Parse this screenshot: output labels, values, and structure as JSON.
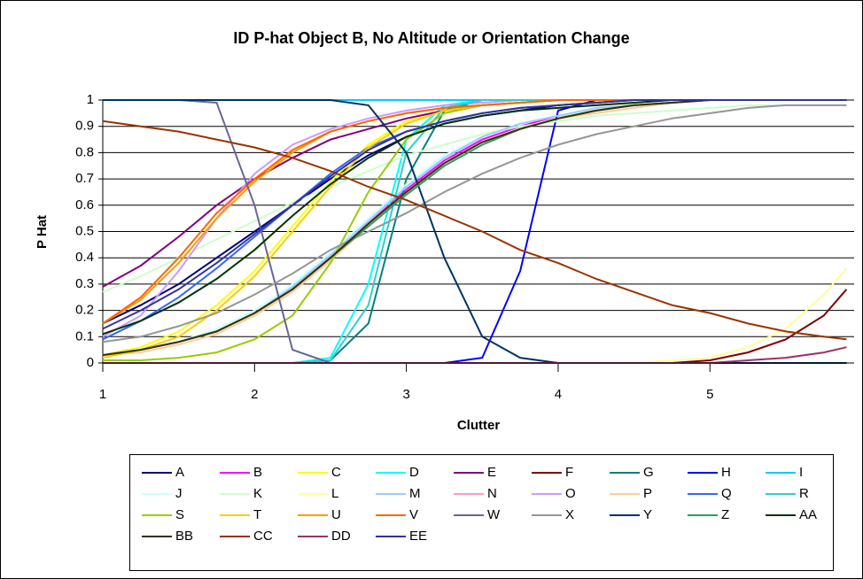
{
  "chart_data": {
    "type": "line",
    "title": "ID P-hat Object B, No Altitude or Orientation Change",
    "xlabel": "Clutter",
    "ylabel": "P Hat",
    "x": [
      1,
      1.25,
      1.5,
      1.75,
      2,
      2.25,
      2.5,
      2.75,
      3,
      3.25,
      3.5,
      3.75,
      4,
      4.25,
      4.5,
      4.75,
      5,
      5.25,
      5.5,
      5.75,
      5.9
    ],
    "xlim": [
      1,
      5.95
    ],
    "xticks": [
      1,
      2,
      3,
      4,
      5
    ],
    "ylim": [
      0,
      1
    ],
    "yticks": [
      0,
      0.1,
      0.2,
      0.3,
      0.4,
      0.5,
      0.6,
      0.7,
      0.8,
      0.9,
      1
    ],
    "grid": true,
    "legend": "bottom",
    "series": [
      {
        "name": "A",
        "color": "#000080",
        "values": [
          0.15,
          0.22,
          0.3,
          0.4,
          0.5,
          0.6,
          0.7,
          0.79,
          0.86,
          0.91,
          0.94,
          0.96,
          0.98,
          0.99,
          1,
          1,
          1,
          1,
          1,
          1,
          1
        ]
      },
      {
        "name": "B",
        "color": "#FF00FF",
        "values": [
          0.03,
          0.05,
          0.08,
          0.12,
          0.19,
          0.28,
          0.4,
          0.53,
          0.66,
          0.77,
          0.85,
          0.9,
          0.94,
          0.96,
          0.98,
          0.99,
          1,
          1,
          1,
          1,
          1
        ]
      },
      {
        "name": "C",
        "color": "#FFFF00",
        "values": [
          0.03,
          0.06,
          0.12,
          0.22,
          0.35,
          0.52,
          0.69,
          0.83,
          0.92,
          0.96,
          0.98,
          0.99,
          1,
          1,
          1,
          1,
          1,
          1,
          1,
          1,
          1
        ]
      },
      {
        "name": "D",
        "color": "#00FFFF",
        "values": [
          0,
          0,
          0,
          0,
          0,
          0,
          0.02,
          0.3,
          0.85,
          0.98,
          1,
          1,
          1,
          1,
          1,
          1,
          1,
          1,
          1,
          1,
          1
        ]
      },
      {
        "name": "E",
        "color": "#800080",
        "values": [
          0.29,
          0.37,
          0.48,
          0.6,
          0.7,
          0.78,
          0.85,
          0.89,
          0.93,
          0.96,
          0.98,
          0.99,
          1,
          1,
          1,
          1,
          1,
          1,
          1,
          1,
          1
        ]
      },
      {
        "name": "F",
        "color": "#800000",
        "values": [
          0,
          0,
          0,
          0,
          0,
          0,
          0,
          0,
          0,
          0,
          0,
          0,
          0,
          0,
          0,
          0,
          0.01,
          0.04,
          0.09,
          0.18,
          0.28
        ]
      },
      {
        "name": "G",
        "color": "#008080",
        "values": [
          0,
          0,
          0,
          0,
          0,
          0,
          0.01,
          0.15,
          0.7,
          0.96,
          1,
          1,
          1,
          1,
          1,
          1,
          1,
          1,
          1,
          1,
          1
        ]
      },
      {
        "name": "H",
        "color": "#0000FF",
        "values": [
          0,
          0,
          0,
          0,
          0,
          0,
          0,
          0,
          0,
          0,
          0.02,
          0.35,
          0.96,
          1,
          1,
          1,
          1,
          1,
          1,
          1,
          1
        ]
      },
      {
        "name": "I",
        "color": "#00CCFF",
        "values": [
          1,
          1,
          1,
          1,
          1,
          1,
          1,
          1,
          1,
          1,
          1,
          1,
          1,
          1,
          1,
          1,
          1,
          1,
          1,
          1,
          1
        ]
      },
      {
        "name": "J",
        "color": "#CCFFFF",
        "values": [
          0.03,
          0.05,
          0.08,
          0.13,
          0.2,
          0.3,
          0.42,
          0.55,
          0.68,
          0.79,
          0.86,
          0.91,
          0.94,
          0.96,
          0.98,
          0.99,
          1,
          1,
          1,
          1,
          1
        ]
      },
      {
        "name": "K",
        "color": "#CCFFCC",
        "values": [
          0.27,
          0.33,
          0.4,
          0.47,
          0.54,
          0.61,
          0.67,
          0.73,
          0.79,
          0.83,
          0.87,
          0.9,
          0.92,
          0.94,
          0.95,
          0.96,
          0.97,
          0.98,
          0.98,
          0.98,
          0.98
        ]
      },
      {
        "name": "L",
        "color": "#FFFF99",
        "values": [
          0,
          0,
          0,
          0,
          0,
          0,
          0,
          0,
          0,
          0,
          0,
          0,
          0,
          0,
          0,
          0.01,
          0.02,
          0.06,
          0.13,
          0.26,
          0.36
        ]
      },
      {
        "name": "M",
        "color": "#99CCFF",
        "values": [
          0.03,
          0.05,
          0.08,
          0.12,
          0.19,
          0.29,
          0.41,
          0.54,
          0.67,
          0.78,
          0.86,
          0.91,
          0.94,
          0.97,
          0.98,
          0.99,
          1,
          1,
          1,
          1,
          1
        ]
      },
      {
        "name": "N",
        "color": "#FF99CC",
        "values": [
          0.03,
          0.05,
          0.08,
          0.12,
          0.19,
          0.28,
          0.4,
          0.53,
          0.65,
          0.76,
          0.84,
          0.89,
          0.93,
          0.96,
          0.98,
          0.99,
          1,
          1,
          1,
          1,
          1
        ]
      },
      {
        "name": "O",
        "color": "#CC99FF",
        "values": [
          0.1,
          0.18,
          0.35,
          0.55,
          0.72,
          0.83,
          0.89,
          0.93,
          0.96,
          0.98,
          0.99,
          1,
          1,
          1,
          1,
          1,
          1,
          1,
          1,
          1,
          1
        ]
      },
      {
        "name": "P",
        "color": "#FFCC99",
        "values": [
          0.03,
          0.04,
          0.07,
          0.11,
          0.18,
          0.27,
          0.39,
          0.52,
          0.64,
          0.75,
          0.83,
          0.89,
          0.93,
          0.95,
          0.97,
          0.99,
          1,
          1,
          1,
          1,
          1
        ]
      },
      {
        "name": "Q",
        "color": "#3366FF",
        "values": [
          0.09,
          0.16,
          0.25,
          0.36,
          0.48,
          0.6,
          0.72,
          0.82,
          0.88,
          0.92,
          0.95,
          0.97,
          0.98,
          0.99,
          1,
          1,
          1,
          1,
          1,
          1,
          1
        ]
      },
      {
        "name": "R",
        "color": "#33CCCC",
        "values": [
          0,
          0,
          0,
          0,
          0,
          0,
          0.01,
          0.22,
          0.8,
          0.97,
          1,
          1,
          1,
          1,
          1,
          1,
          1,
          1,
          1,
          1,
          1
        ]
      },
      {
        "name": "S",
        "color": "#99CC00",
        "values": [
          0.01,
          0.01,
          0.02,
          0.04,
          0.09,
          0.18,
          0.38,
          0.65,
          0.85,
          0.95,
          0.98,
          0.99,
          1,
          1,
          1,
          1,
          1,
          1,
          1,
          1,
          1
        ]
      },
      {
        "name": "T",
        "color": "#FFCC00",
        "values": [
          0.02,
          0.05,
          0.1,
          0.2,
          0.33,
          0.5,
          0.67,
          0.82,
          0.91,
          0.96,
          0.98,
          0.99,
          1,
          1,
          1,
          1,
          1,
          1,
          1,
          1,
          1
        ]
      },
      {
        "name": "U",
        "color": "#FF9900",
        "values": [
          0.15,
          0.24,
          0.38,
          0.55,
          0.69,
          0.8,
          0.88,
          0.92,
          0.95,
          0.97,
          0.98,
          0.99,
          1,
          1,
          1,
          1,
          1,
          1,
          1,
          1,
          1
        ]
      },
      {
        "name": "V",
        "color": "#FF6600",
        "values": [
          0.15,
          0.25,
          0.4,
          0.57,
          0.7,
          0.81,
          0.88,
          0.92,
          0.95,
          0.97,
          0.98,
          0.99,
          1,
          1,
          1,
          1,
          1,
          1,
          1,
          1,
          1
        ]
      },
      {
        "name": "W",
        "color": "#666699",
        "values": [
          1,
          1,
          1,
          0.99,
          0.6,
          0.05,
          0,
          0,
          0,
          0,
          0,
          0,
          0,
          0,
          0,
          0,
          0,
          0,
          0,
          0,
          0
        ]
      },
      {
        "name": "X",
        "color": "#969696",
        "values": [
          0.08,
          0.1,
          0.14,
          0.19,
          0.26,
          0.34,
          0.43,
          0.5,
          0.57,
          0.65,
          0.72,
          0.78,
          0.83,
          0.87,
          0.9,
          0.93,
          0.95,
          0.97,
          0.98,
          0.98,
          0.98
        ]
      },
      {
        "name": "Y",
        "color": "#003366",
        "values": [
          1,
          1,
          1,
          1,
          1,
          1,
          1,
          0.98,
          0.8,
          0.4,
          0.1,
          0.02,
          0,
          0,
          0,
          0,
          0,
          0,
          0,
          0,
          0
        ]
      },
      {
        "name": "Z",
        "color": "#339966",
        "values": [
          0.03,
          0.05,
          0.08,
          0.12,
          0.19,
          0.28,
          0.4,
          0.52,
          0.64,
          0.75,
          0.83,
          0.89,
          0.93,
          0.96,
          0.98,
          0.99,
          1,
          1,
          1,
          1,
          1
        ]
      },
      {
        "name": "AA",
        "color": "#003300",
        "values": [
          0.11,
          0.16,
          0.23,
          0.32,
          0.43,
          0.56,
          0.68,
          0.78,
          0.86,
          0.91,
          0.94,
          0.96,
          0.97,
          0.98,
          0.99,
          1,
          1,
          1,
          1,
          1,
          1
        ]
      },
      {
        "name": "BB",
        "color": "#333300",
        "values": [
          0.03,
          0.05,
          0.08,
          0.12,
          0.19,
          0.28,
          0.4,
          0.53,
          0.65,
          0.76,
          0.84,
          0.89,
          0.93,
          0.96,
          0.98,
          0.99,
          1,
          1,
          1,
          1,
          1
        ]
      },
      {
        "name": "CC",
        "color": "#993300",
        "values": [
          0.92,
          0.9,
          0.88,
          0.85,
          0.82,
          0.78,
          0.73,
          0.67,
          0.62,
          0.56,
          0.5,
          0.43,
          0.38,
          0.32,
          0.27,
          0.22,
          0.19,
          0.15,
          0.12,
          0.1,
          0.09
        ]
      },
      {
        "name": "DD",
        "color": "#993366",
        "values": [
          0,
          0,
          0,
          0,
          0,
          0,
          0,
          0,
          0,
          0,
          0,
          0,
          0,
          0,
          0,
          0,
          0,
          0.01,
          0.02,
          0.04,
          0.06
        ]
      },
      {
        "name": "EE",
        "color": "#333399",
        "values": [
          0.13,
          0.2,
          0.28,
          0.38,
          0.49,
          0.6,
          0.71,
          0.81,
          0.88,
          0.92,
          0.95,
          0.97,
          0.98,
          0.99,
          1,
          1,
          1,
          1,
          1,
          1,
          1
        ]
      }
    ]
  }
}
